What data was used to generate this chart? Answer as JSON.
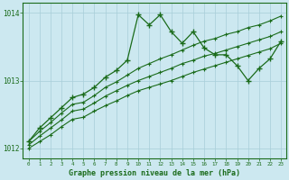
{
  "title": "Graphe pression niveau de la mer (hPa)",
  "x_values": [
    0,
    1,
    2,
    3,
    4,
    5,
    6,
    7,
    8,
    9,
    10,
    11,
    12,
    13,
    14,
    15,
    16,
    17,
    18,
    19,
    20,
    21,
    22,
    23
  ],
  "main_line": [
    1012.1,
    1012.3,
    1012.45,
    1012.6,
    1012.75,
    1012.8,
    1012.9,
    1013.05,
    1013.15,
    1013.3,
    1013.97,
    1013.82,
    1013.97,
    1013.72,
    1013.55,
    1013.72,
    1013.48,
    1013.38,
    1013.38,
    1013.22,
    1013.0,
    1013.18,
    1013.32,
    1013.58
  ],
  "line_upper": [
    1012.1,
    1012.25,
    1012.38,
    1012.52,
    1012.65,
    1012.68,
    1012.78,
    1012.9,
    1012.98,
    1013.08,
    1013.18,
    1013.25,
    1013.32,
    1013.38,
    1013.45,
    1013.52,
    1013.58,
    1013.62,
    1013.68,
    1013.72,
    1013.78,
    1013.82,
    1013.88,
    1013.95
  ],
  "line_mid": [
    1012.05,
    1012.18,
    1012.3,
    1012.42,
    1012.55,
    1012.58,
    1012.67,
    1012.77,
    1012.85,
    1012.93,
    1013.0,
    1013.06,
    1013.12,
    1013.18,
    1013.25,
    1013.3,
    1013.36,
    1013.4,
    1013.45,
    1013.5,
    1013.55,
    1013.6,
    1013.65,
    1013.72
  ],
  "line_lower": [
    1012.0,
    1012.1,
    1012.2,
    1012.32,
    1012.43,
    1012.46,
    1012.55,
    1012.63,
    1012.7,
    1012.78,
    1012.85,
    1012.9,
    1012.95,
    1013.0,
    1013.06,
    1013.12,
    1013.17,
    1013.22,
    1013.27,
    1013.32,
    1013.37,
    1013.42,
    1013.47,
    1013.55
  ],
  "line_color": "#1a6b1a",
  "bg_color": "#cce8f0",
  "grid_color": "#a8cdd8",
  "ylim": [
    1011.85,
    1014.15
  ],
  "yticks": [
    1012,
    1013,
    1014
  ],
  "xlim": [
    -0.5,
    23.5
  ],
  "figw": 3.2,
  "figh": 2.0,
  "dpi": 100
}
